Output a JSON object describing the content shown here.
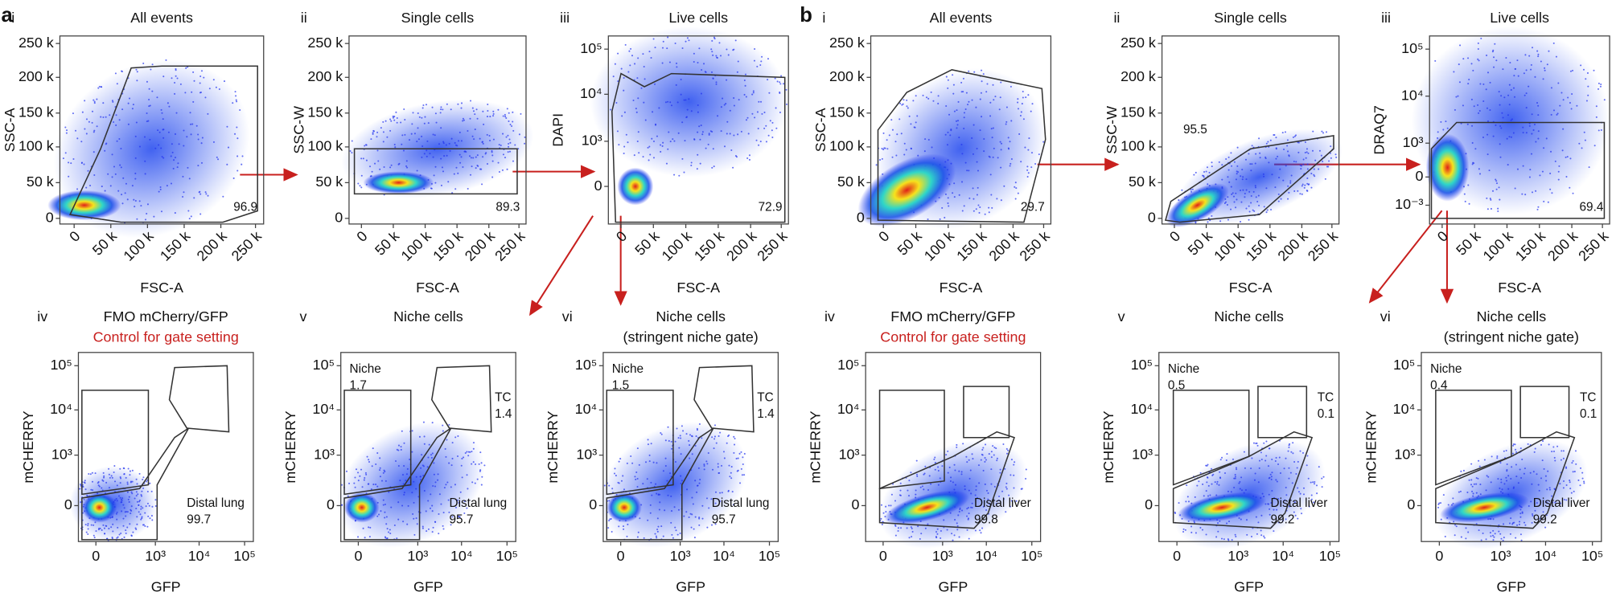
{
  "figure_labels": [
    "a",
    "b"
  ],
  "panels": [
    {
      "numeral": "i",
      "title": [
        "All events"
      ],
      "xlabel": "FSC-A",
      "ylabel": "SSC-A",
      "xticks": [
        "0",
        "50 k",
        "100 k",
        "150 k",
        "200 k",
        "250 k"
      ],
      "yticks": [
        "0",
        "50 k",
        "100 k",
        "150 k",
        "200 k",
        "250 k"
      ],
      "gates": [
        [
          "96.9"
        ]
      ]
    },
    {
      "numeral": "ii",
      "title": [
        "Single cells"
      ],
      "xlabel": "FSC-A",
      "ylabel": "SSC-W",
      "xticks": [
        "0",
        "50 k",
        "100 k",
        "150 k",
        "200 k",
        "250 k"
      ],
      "yticks": [
        "0",
        "50 k",
        "100 k",
        "150 k",
        "200 k",
        "250 k"
      ],
      "gates": [
        [
          "89.3"
        ]
      ]
    },
    {
      "numeral": "iii",
      "title": [
        "Live cells"
      ],
      "xlabel": "FSC-A",
      "ylabel": "DAPI",
      "xticks": [
        "0",
        "50 k",
        "100 k",
        "150 k",
        "200 k",
        "250 k"
      ],
      "yticks": [
        "0",
        "10³",
        "10⁴",
        "10⁵"
      ],
      "gates": [
        [
          "72.9"
        ]
      ]
    },
    {
      "numeral": "i",
      "title": [
        "All events"
      ],
      "xlabel": "FSC-A",
      "ylabel": "SSC-A",
      "xticks": [
        "0",
        "50 k",
        "100 k",
        "150 k",
        "200 k",
        "250 k"
      ],
      "yticks": [
        "0",
        "50 k",
        "100 k",
        "150 k",
        "200 k",
        "250 k"
      ],
      "gates": [
        [
          "29.7"
        ]
      ]
    },
    {
      "numeral": "ii",
      "title": [
        "Single cells"
      ],
      "xlabel": "FSC-A",
      "ylabel": "SSC-W",
      "xticks": [
        "0",
        "50 k",
        "100 k",
        "150 k",
        "200 k",
        "250 k"
      ],
      "yticks": [
        "0",
        "50 k",
        "100 k",
        "150 k",
        "200 k",
        "250 k"
      ],
      "gates": [
        [
          "95.5"
        ]
      ]
    },
    {
      "numeral": "iii",
      "title": [
        "Live cells"
      ],
      "xlabel": "FSC-A",
      "ylabel": "DRAQ7",
      "xticks": [
        "0",
        "50 k",
        "100 k",
        "150 k",
        "200 k",
        "250 k"
      ],
      "yticks": [
        "10⁻³",
        "0",
        "10³",
        "10⁴",
        "10⁵"
      ],
      "gates": [
        [
          "69.4"
        ]
      ]
    },
    {
      "numeral": "iv",
      "title": [
        "FMO mCherry/GFP"
      ],
      "subtitle": "Control for gate setting",
      "xlabel": "GFP",
      "ylabel": "mCHERRY",
      "xticks": [
        "0",
        "10³",
        "10⁴",
        "10⁵"
      ],
      "yticks": [
        "0",
        "10³",
        "10⁴",
        "10⁵"
      ],
      "gates": [
        [
          "Distal lung",
          "99.7"
        ]
      ]
    },
    {
      "numeral": "v",
      "title": [
        "Niche cells"
      ],
      "xlabel": "GFP",
      "ylabel": "mCHERRY",
      "xticks": [
        "0",
        "10³",
        "10⁴",
        "10⁵"
      ],
      "yticks": [
        "0",
        "10³",
        "10⁴",
        "10⁵"
      ],
      "gates": [
        [
          "Niche",
          "1.7"
        ],
        [
          "TC",
          "1.4"
        ],
        [
          "Distal lung",
          "95.7"
        ]
      ]
    },
    {
      "numeral": "vi",
      "title": [
        "Niche cells",
        "(stringent niche gate)"
      ],
      "xlabel": "GFP",
      "ylabel": "mCHERRY",
      "xticks": [
        "0",
        "10³",
        "10⁴",
        "10⁵"
      ],
      "yticks": [
        "0",
        "10³",
        "10⁴",
        "10⁵"
      ],
      "gates": [
        [
          "Niche",
          "1.5"
        ],
        [
          "TC",
          "1.4"
        ],
        [
          "Distal lung",
          "95.7"
        ]
      ]
    },
    {
      "numeral": "iv",
      "title": [
        "FMO mCherry/GFP"
      ],
      "subtitle": "Control for gate setting",
      "xlabel": "GFP",
      "ylabel": "mCHERRY",
      "xticks": [
        "0",
        "10³",
        "10⁴",
        "10⁵"
      ],
      "yticks": [
        "0",
        "10³",
        "10⁴",
        "10⁵"
      ],
      "gates": [
        [
          "Distal liver",
          "99.8"
        ]
      ]
    },
    {
      "numeral": "v",
      "title": [
        "Niche cells"
      ],
      "xlabel": "GFP",
      "ylabel": "mCHERRY",
      "xticks": [
        "0",
        "10³",
        "10⁴",
        "10⁵"
      ],
      "yticks": [
        "0",
        "10³",
        "10⁴",
        "10⁵"
      ],
      "gates": [
        [
          "Niche",
          "0.5"
        ],
        [
          "TC",
          "0.1"
        ],
        [
          "Distal liver",
          "99.2"
        ]
      ]
    },
    {
      "numeral": "vi",
      "title": [
        "Niche cells",
        "(stringent niche gate)"
      ],
      "xlabel": "GFP",
      "ylabel": "mCHERRY",
      "xticks": [
        "0",
        "10³",
        "10⁴",
        "10⁵"
      ],
      "yticks": [
        "0",
        "10³",
        "10⁴",
        "10⁵"
      ],
      "gates": [
        [
          "Niche",
          "0.4"
        ],
        [
          "TC",
          "0.1"
        ],
        [
          "Distal liver",
          "99.2"
        ]
      ]
    }
  ]
}
